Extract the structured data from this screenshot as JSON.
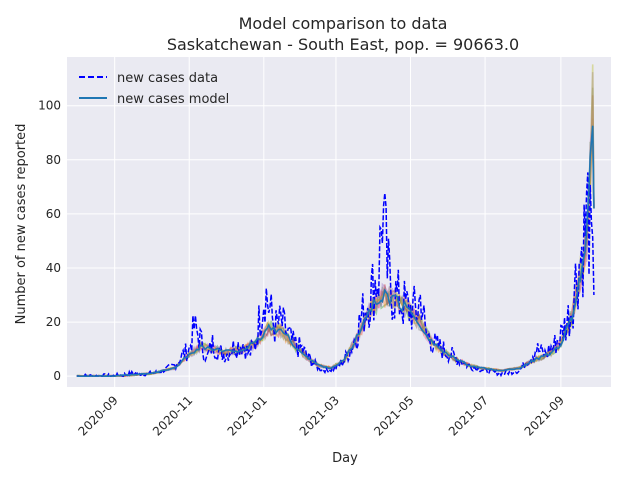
{
  "chart_data": {
    "type": "line",
    "title": "Model comparison to data",
    "subtitle": "Saskatchewan - South East, pop. = 90663.0",
    "xlabel": "Day",
    "ylabel": "Number of new cases reported",
    "x_ticks": [
      "2020-09",
      "2020-11",
      "2021-01",
      "2021-03",
      "2021-05",
      "2021-07",
      "2021-09"
    ],
    "y_ticks": [
      0,
      20,
      40,
      60,
      80,
      100
    ],
    "xlim": [
      "2020-07-24",
      "2021-10-12"
    ],
    "ylim": [
      -4,
      118
    ],
    "grid": true,
    "legend_position": "top-left",
    "legend": [
      "new cases data",
      "new cases model"
    ],
    "colors": {
      "background": "#eaeaf2",
      "grid": "#ffffff",
      "data_line": "#0000ff",
      "model_line": "#1f77b4",
      "ensemble": [
        "#2ca02c",
        "#ff7f0e",
        "#d62728",
        "#9467bd",
        "#8c564b",
        "#e377c2",
        "#7f7f7f",
        "#bcbd22"
      ]
    },
    "series": [
      {
        "name": "new cases data",
        "style": "dashed",
        "points": [
          [
            "2020-08-01",
            0
          ],
          [
            "2020-08-15",
            0
          ],
          [
            "2020-09-01",
            0
          ],
          [
            "2020-09-15",
            1
          ],
          [
            "2020-10-01",
            1
          ],
          [
            "2020-10-10",
            2
          ],
          [
            "2020-10-20",
            4
          ],
          [
            "2020-10-27",
            8
          ],
          [
            "2020-11-01",
            10
          ],
          [
            "2020-11-05",
            18
          ],
          [
            "2020-11-10",
            14
          ],
          [
            "2020-11-15",
            6
          ],
          [
            "2020-11-20",
            12
          ],
          [
            "2020-11-25",
            9
          ],
          [
            "2020-12-01",
            8
          ],
          [
            "2020-12-08",
            11
          ],
          [
            "2020-12-15",
            12
          ],
          [
            "2020-12-20",
            8
          ],
          [
            "2020-12-25",
            12
          ],
          [
            "2020-12-28",
            20
          ],
          [
            "2021-01-02",
            32
          ],
          [
            "2021-01-05",
            26
          ],
          [
            "2021-01-10",
            18
          ],
          [
            "2021-01-15",
            20
          ],
          [
            "2021-01-20",
            16
          ],
          [
            "2021-01-25",
            12
          ],
          [
            "2021-02-01",
            10
          ],
          [
            "2021-02-08",
            6
          ],
          [
            "2021-02-15",
            3
          ],
          [
            "2021-02-22",
            2
          ],
          [
            "2021-03-01",
            3
          ],
          [
            "2021-03-08",
            6
          ],
          [
            "2021-03-15",
            12
          ],
          [
            "2021-03-22",
            22
          ],
          [
            "2021-03-29",
            30
          ],
          [
            "2021-04-05",
            38
          ],
          [
            "2021-04-08",
            63
          ],
          [
            "2021-04-12",
            40
          ],
          [
            "2021-04-15",
            32
          ],
          [
            "2021-04-22",
            28
          ],
          [
            "2021-04-29",
            25
          ],
          [
            "2021-05-06",
            24
          ],
          [
            "2021-05-10",
            30
          ],
          [
            "2021-05-13",
            16
          ],
          [
            "2021-05-20",
            12
          ],
          [
            "2021-05-27",
            10
          ],
          [
            "2021-06-03",
            8
          ],
          [
            "2021-06-10",
            6
          ],
          [
            "2021-06-17",
            4
          ],
          [
            "2021-06-24",
            3
          ],
          [
            "2021-07-01",
            2
          ],
          [
            "2021-07-15",
            1
          ],
          [
            "2021-07-29",
            2
          ],
          [
            "2021-08-05",
            6
          ],
          [
            "2021-08-12",
            10
          ],
          [
            "2021-08-19",
            8
          ],
          [
            "2021-08-26",
            11
          ],
          [
            "2021-09-02",
            16
          ],
          [
            "2021-09-09",
            24
          ],
          [
            "2021-09-14",
            38
          ],
          [
            "2021-09-19",
            48
          ],
          [
            "2021-09-23",
            62
          ],
          [
            "2021-09-26",
            46
          ],
          [
            "2021-09-28",
            30
          ]
        ]
      },
      {
        "name": "new cases model",
        "style": "solid",
        "points": [
          [
            "2020-08-01",
            0
          ],
          [
            "2020-09-01",
            0
          ],
          [
            "2020-10-01",
            1
          ],
          [
            "2020-10-20",
            3
          ],
          [
            "2020-11-01",
            8
          ],
          [
            "2020-11-10",
            11
          ],
          [
            "2020-11-20",
            10
          ],
          [
            "2020-12-01",
            9
          ],
          [
            "2020-12-15",
            10
          ],
          [
            "2020-12-25",
            12
          ],
          [
            "2021-01-05",
            18
          ],
          [
            "2021-01-15",
            17
          ],
          [
            "2021-01-25",
            12
          ],
          [
            "2021-02-05",
            7
          ],
          [
            "2021-02-15",
            4
          ],
          [
            "2021-02-25",
            3
          ],
          [
            "2021-03-08",
            6
          ],
          [
            "2021-03-18",
            14
          ],
          [
            "2021-03-28",
            24
          ],
          [
            "2021-04-08",
            30
          ],
          [
            "2021-04-18",
            28
          ],
          [
            "2021-04-28",
            25
          ],
          [
            "2021-05-08",
            20
          ],
          [
            "2021-05-18",
            13
          ],
          [
            "2021-05-28",
            9
          ],
          [
            "2021-06-08",
            6
          ],
          [
            "2021-06-18",
            4
          ],
          [
            "2021-06-28",
            3
          ],
          [
            "2021-07-15",
            2
          ],
          [
            "2021-07-29",
            3
          ],
          [
            "2021-08-10",
            6
          ],
          [
            "2021-08-22",
            8
          ],
          [
            "2021-09-01",
            12
          ],
          [
            "2021-09-10",
            22
          ],
          [
            "2021-09-17",
            38
          ],
          [
            "2021-09-22",
            50
          ],
          [
            "2021-09-25",
            75
          ],
          [
            "2021-09-27",
            100
          ],
          [
            "2021-09-28",
            62
          ]
        ]
      }
    ]
  }
}
